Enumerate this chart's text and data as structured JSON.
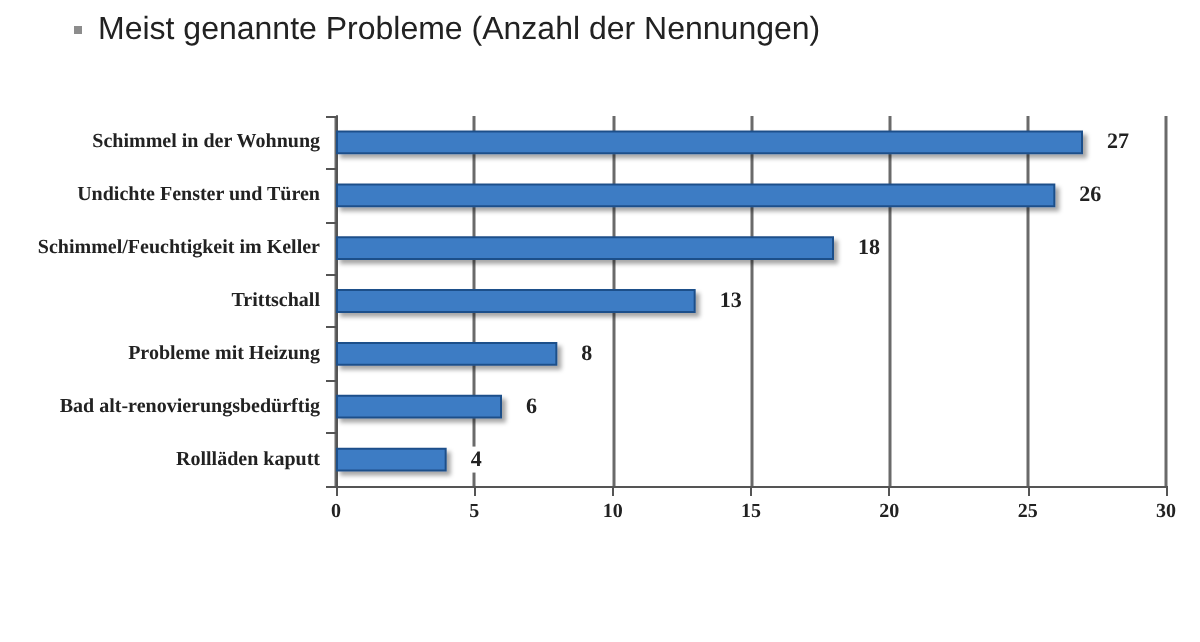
{
  "chart_data": {
    "type": "bar",
    "orientation": "horizontal",
    "title": "Meist genannte Probleme (Anzahl der Nennungen)",
    "categories": [
      "Schimmel in der Wohnung",
      "Undichte Fenster und Türen",
      "Schimmel/Feuchtigkeit im Keller",
      "Trittschall",
      "Probleme mit Heizung",
      "Bad alt-renovierungsbedürftig",
      "Rollläden kaputt"
    ],
    "values": [
      27,
      26,
      18,
      13,
      8,
      6,
      4
    ],
    "color": "#3d7cc4",
    "xlim": [
      0,
      30
    ],
    "xticks": [
      0,
      5,
      10,
      15,
      20,
      25,
      30
    ],
    "grid": "x",
    "data_labels": true
  }
}
